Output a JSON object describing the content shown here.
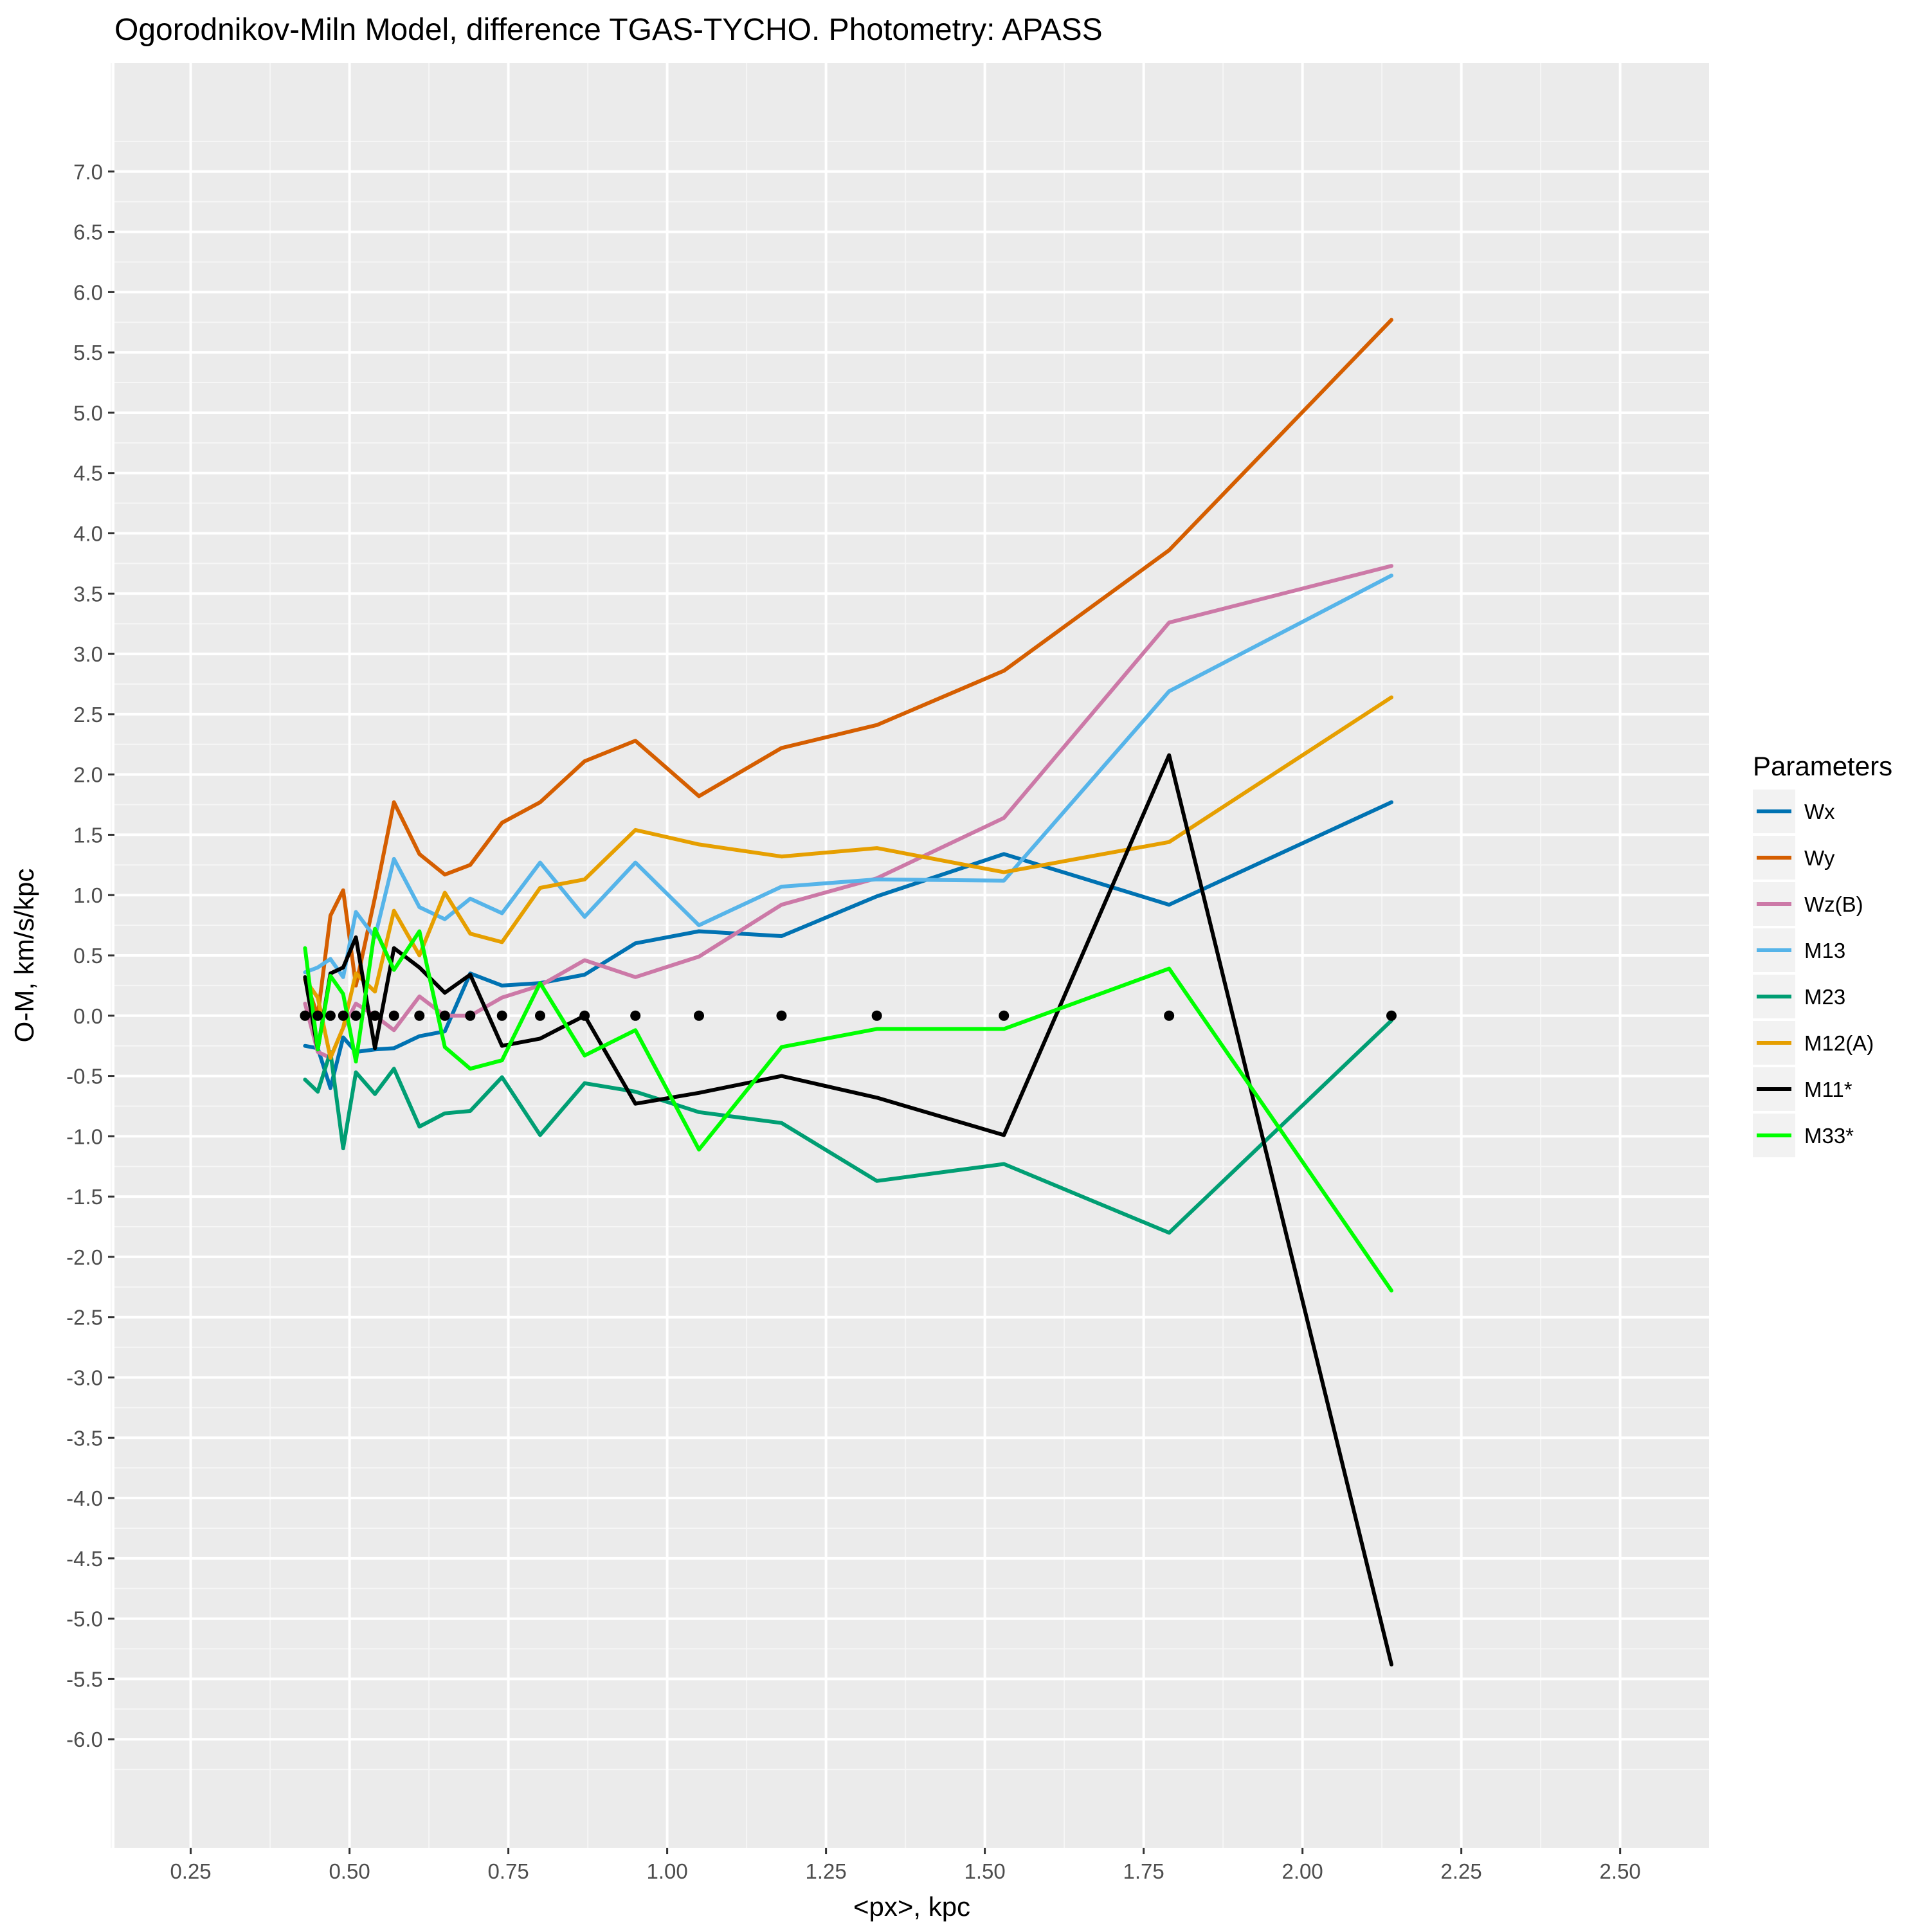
{
  "chart_data": {
    "type": "line",
    "title": "Ogorodnikov-Miln Model, difference TGAS-TYCHO. Photometry: APASS",
    "xlabel": "<px>, kpc",
    "ylabel": "O-M, km/s/kpc",
    "xlim": [
      0.13,
      2.64
    ],
    "ylim": [
      -6.9,
      7.9
    ],
    "xticks": [
      0.25,
      0.5,
      0.75,
      1.0,
      1.25,
      1.5,
      1.75,
      2.0,
      2.25,
      2.5
    ],
    "xtick_labels": [
      "0.25",
      "0.50",
      "0.75",
      "1.00",
      "1.25",
      "1.50",
      "1.75",
      "2.00",
      "2.25",
      "2.50"
    ],
    "yticks": [
      7.0,
      6.5,
      6.0,
      5.5,
      5.0,
      4.5,
      4.0,
      3.5,
      3.0,
      2.5,
      2.0,
      1.5,
      1.0,
      0.5,
      0.0,
      -0.5,
      -1.0,
      -1.5,
      -2.0,
      -2.5,
      -3.0,
      -3.5,
      -4.0,
      -4.5,
      -5.0,
      -5.5,
      -6.0
    ],
    "ytick_labels": [
      "7.0",
      "6.5",
      "6.0",
      "5.5",
      "5.0",
      "4.5",
      "4.0",
      "3.5",
      "3.0",
      "2.5",
      "2.0",
      "1.5",
      "1.0",
      "0.5",
      "0.0",
      "-0.5",
      "-1.0",
      "-1.5",
      "-2.0",
      "-2.5",
      "-3.0",
      "-3.5",
      "-4.0",
      "-4.5",
      "-5.0",
      "-5.5",
      "-6.0"
    ],
    "grid": true,
    "legend": {
      "title": "Parameters",
      "position": "right"
    },
    "x": [
      0.43,
      0.45,
      0.47,
      0.49,
      0.51,
      0.54,
      0.57,
      0.61,
      0.65,
      0.69,
      0.74,
      0.8,
      0.87,
      0.95,
      1.05,
      1.18,
      1.33,
      1.53,
      1.79,
      2.14
    ],
    "series": [
      {
        "name": "Wx",
        "color": "#0072B2",
        "values": [
          -0.25,
          -0.27,
          -0.6,
          -0.18,
          -0.3,
          -0.28,
          -0.27,
          -0.17,
          -0.13,
          0.35,
          0.25,
          0.27,
          0.34,
          0.6,
          0.7,
          0.66,
          0.99,
          1.34,
          0.92,
          1.77
        ]
      },
      {
        "name": "Wy",
        "color": "#D55E00",
        "values": [
          0.3,
          0.0,
          0.83,
          1.04,
          0.25,
          0.98,
          1.77,
          1.34,
          1.17,
          1.25,
          1.6,
          1.77,
          2.11,
          2.28,
          1.82,
          2.22,
          2.41,
          2.86,
          3.86,
          5.77
        ]
      },
      {
        "name": "Wz(B)",
        "color": "#CC79A7",
        "values": [
          0.1,
          -0.3,
          -0.35,
          -0.1,
          0.1,
          0.0,
          -0.12,
          0.16,
          0.0,
          0.0,
          0.15,
          0.25,
          0.46,
          0.32,
          0.49,
          0.92,
          1.14,
          1.64,
          3.26,
          3.73
        ]
      },
      {
        "name": "M13",
        "color": "#56B4E9",
        "values": [
          0.36,
          0.4,
          0.47,
          0.32,
          0.86,
          0.65,
          1.3,
          0.9,
          0.8,
          0.97,
          0.85,
          1.27,
          0.82,
          1.27,
          0.75,
          1.07,
          1.13,
          1.12,
          2.69,
          3.65
        ]
      },
      {
        "name": "M23",
        "color": "#009E73",
        "values": [
          -0.53,
          -0.63,
          -0.3,
          -1.1,
          -0.47,
          -0.65,
          -0.44,
          -0.92,
          -0.81,
          -0.79,
          -0.51,
          -0.99,
          -0.56,
          -0.63,
          -0.8,
          -0.89,
          -1.37,
          -1.23,
          -1.8,
          -0.04
        ]
      },
      {
        "name": "M12(A)",
        "color": "#E69F00",
        "values": [
          0.3,
          0.15,
          -0.35,
          -0.1,
          0.35,
          0.2,
          0.87,
          0.5,
          1.02,
          0.68,
          0.61,
          1.06,
          1.13,
          1.54,
          1.42,
          1.32,
          1.39,
          1.19,
          1.44,
          2.64
        ]
      },
      {
        "name": "M11*",
        "color": "#000000",
        "values": [
          0.32,
          -0.28,
          0.35,
          0.4,
          0.65,
          -0.27,
          0.56,
          0.4,
          0.19,
          0.34,
          -0.25,
          -0.19,
          0.0,
          -0.73,
          -0.64,
          -0.5,
          -0.68,
          -0.99,
          2.16,
          -5.38
        ]
      },
      {
        "name": "M33*",
        "color": "#00FF00",
        "values": [
          0.56,
          -0.28,
          0.33,
          0.18,
          -0.38,
          0.72,
          0.38,
          0.7,
          -0.26,
          -0.44,
          -0.37,
          0.27,
          -0.33,
          -0.12,
          -1.11,
          -0.26,
          -0.11,
          -0.11,
          0.39,
          -2.28
        ]
      }
    ],
    "zero_markers": {
      "y": 0.0,
      "color": "#000000"
    }
  }
}
